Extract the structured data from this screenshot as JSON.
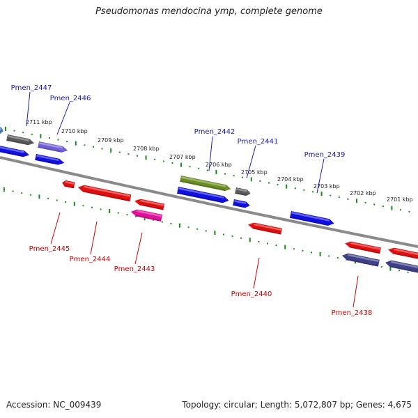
{
  "title": "Pseudomonas mendocina ymp, complete genome",
  "accession_text": "Accession: NC_009439",
  "summary_text": "Topology: circular; Length: 5,072,807 bp; Genes: 4,675",
  "colors": {
    "forward_label": "#1a1aa6",
    "reverse_label": "#cc0000",
    "tick": "#1a8a1a",
    "backbone": "#8a8a8a"
  },
  "ticks": [
    "2711 kbp",
    "2710 kbp",
    "2709 kbp",
    "2708 kbp",
    "2707 kbp",
    "2706 kbp",
    "2705 kbp",
    "2704 kbp",
    "2703 kbp",
    "2702 kbp",
    "2701 kbp"
  ],
  "forward_genes": [
    {
      "name": "Pmen_2447",
      "color": "#5a5a5a"
    },
    {
      "name": "Pmen_2446",
      "color": "#7060d8"
    },
    {
      "name": "Pmen_2442",
      "color": "#6b8e23"
    },
    {
      "name": "Pmen_2441",
      "color": "#5a5a5a"
    },
    {
      "name": "Pmen_2439",
      "color": "#1010e0"
    }
  ],
  "reverse_genes": [
    {
      "name": "Pmen_2445",
      "color": "#e01010"
    },
    {
      "name": "Pmen_2444",
      "color": "#e01010"
    },
    {
      "name": "Pmen_2443",
      "color": "#e0109a"
    },
    {
      "name": "Pmen_2440",
      "color": "#e01010"
    },
    {
      "name": "Pmen_2438",
      "color": "#40408a"
    }
  ]
}
